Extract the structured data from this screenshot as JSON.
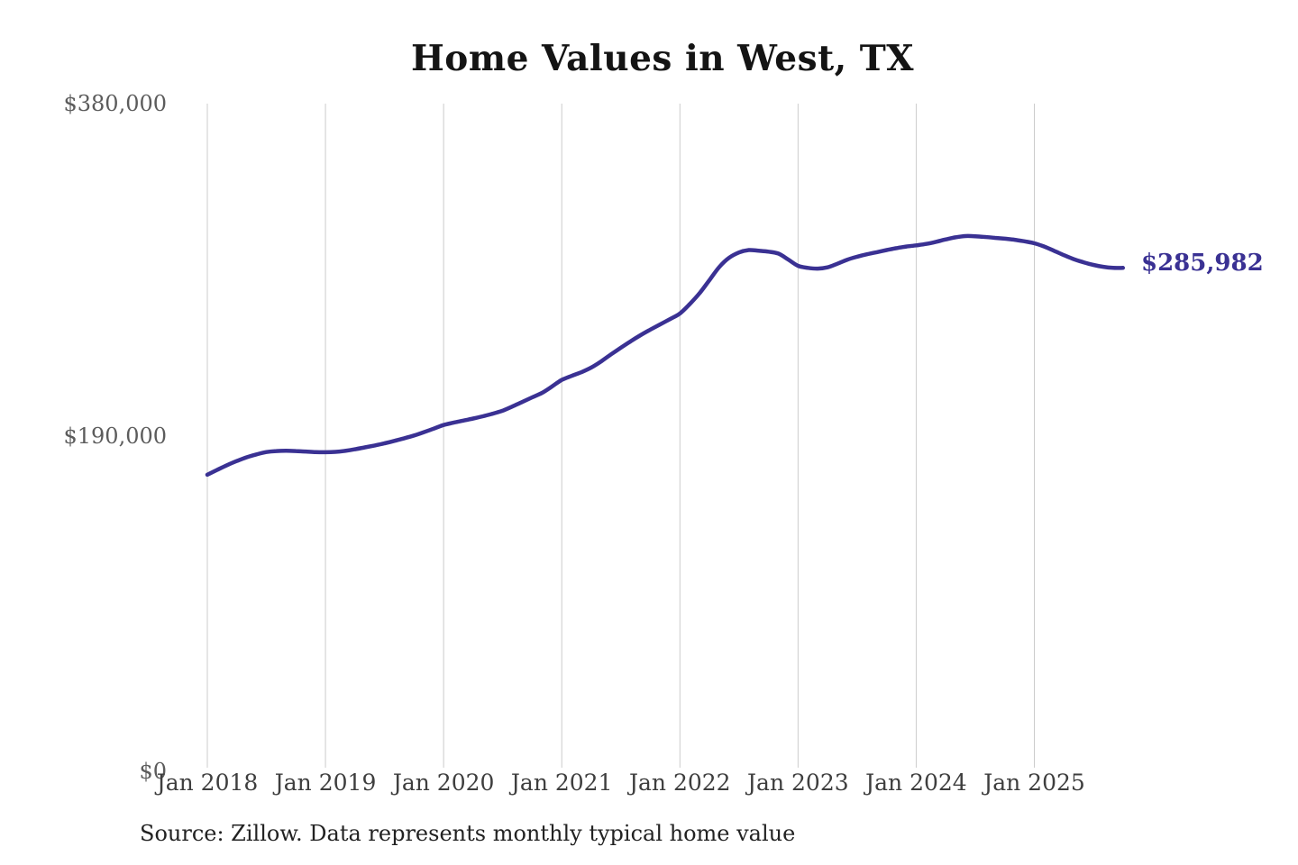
{
  "title": "Home Values in West, TX",
  "source_note": "Source: Zillow. Data represents monthly typical home value",
  "end_label": "$285,982",
  "colors": {
    "line": "#3a3193",
    "end_label": "#3a3193",
    "grid": "#cccccc",
    "title": "#141414",
    "y_tick": "#5c5c5c",
    "x_tick": "#3e3e3e",
    "source": "#222222",
    "background": "#ffffff"
  },
  "chart_data": {
    "type": "line",
    "title": "Home Values in West, TX",
    "xlabel": "",
    "ylabel": "",
    "ylim": [
      0,
      380000
    ],
    "y_ticks": [
      {
        "label": "$380,000",
        "value": 380000
      },
      {
        "label": "$190,000",
        "value": 190000
      },
      {
        "label": "$0",
        "value": 0
      }
    ],
    "x_tick_labels": [
      "Jan 2018",
      "Jan 2019",
      "Jan 2020",
      "Jan 2021",
      "Jan 2022",
      "Jan 2023",
      "Jan 2024",
      "Jan 2025"
    ],
    "grid": "vertical-only",
    "legend": "none",
    "frequency": "monthly",
    "x_start": "2018-01",
    "x_end": "2025-10",
    "end_value": 285982,
    "end_value_label": "$285,982",
    "series": [
      {
        "name": "Typical home value",
        "values": [
          167600,
          170400,
          173100,
          175500,
          177600,
          179300,
          180600,
          181200,
          181400,
          181200,
          180900,
          180600,
          180500,
          180700,
          181300,
          182200,
          183300,
          184400,
          185600,
          187000,
          188500,
          190100,
          192000,
          194000,
          196100,
          197400,
          198600,
          199800,
          201100,
          202600,
          204300,
          206700,
          209300,
          211900,
          214500,
          218100,
          221900,
          224200,
          226300,
          229000,
          232500,
          236500,
          240300,
          244000,
          247500,
          250700,
          253700,
          256700,
          259900,
          265300,
          271500,
          279000,
          286500,
          291800,
          294800,
          296200,
          295800,
          295300,
          294200,
          290800,
          287200,
          286000,
          285600,
          286300,
          288400,
          290700,
          292400,
          293800,
          295000,
          296200,
          297300,
          298200,
          298900,
          299700,
          300900,
          302300,
          303500,
          304200,
          304100,
          303700,
          303200,
          302700,
          302100,
          301200,
          300100,
          298200,
          295800,
          293300,
          291000,
          289200,
          287700,
          286600,
          286000,
          285982
        ]
      }
    ]
  }
}
